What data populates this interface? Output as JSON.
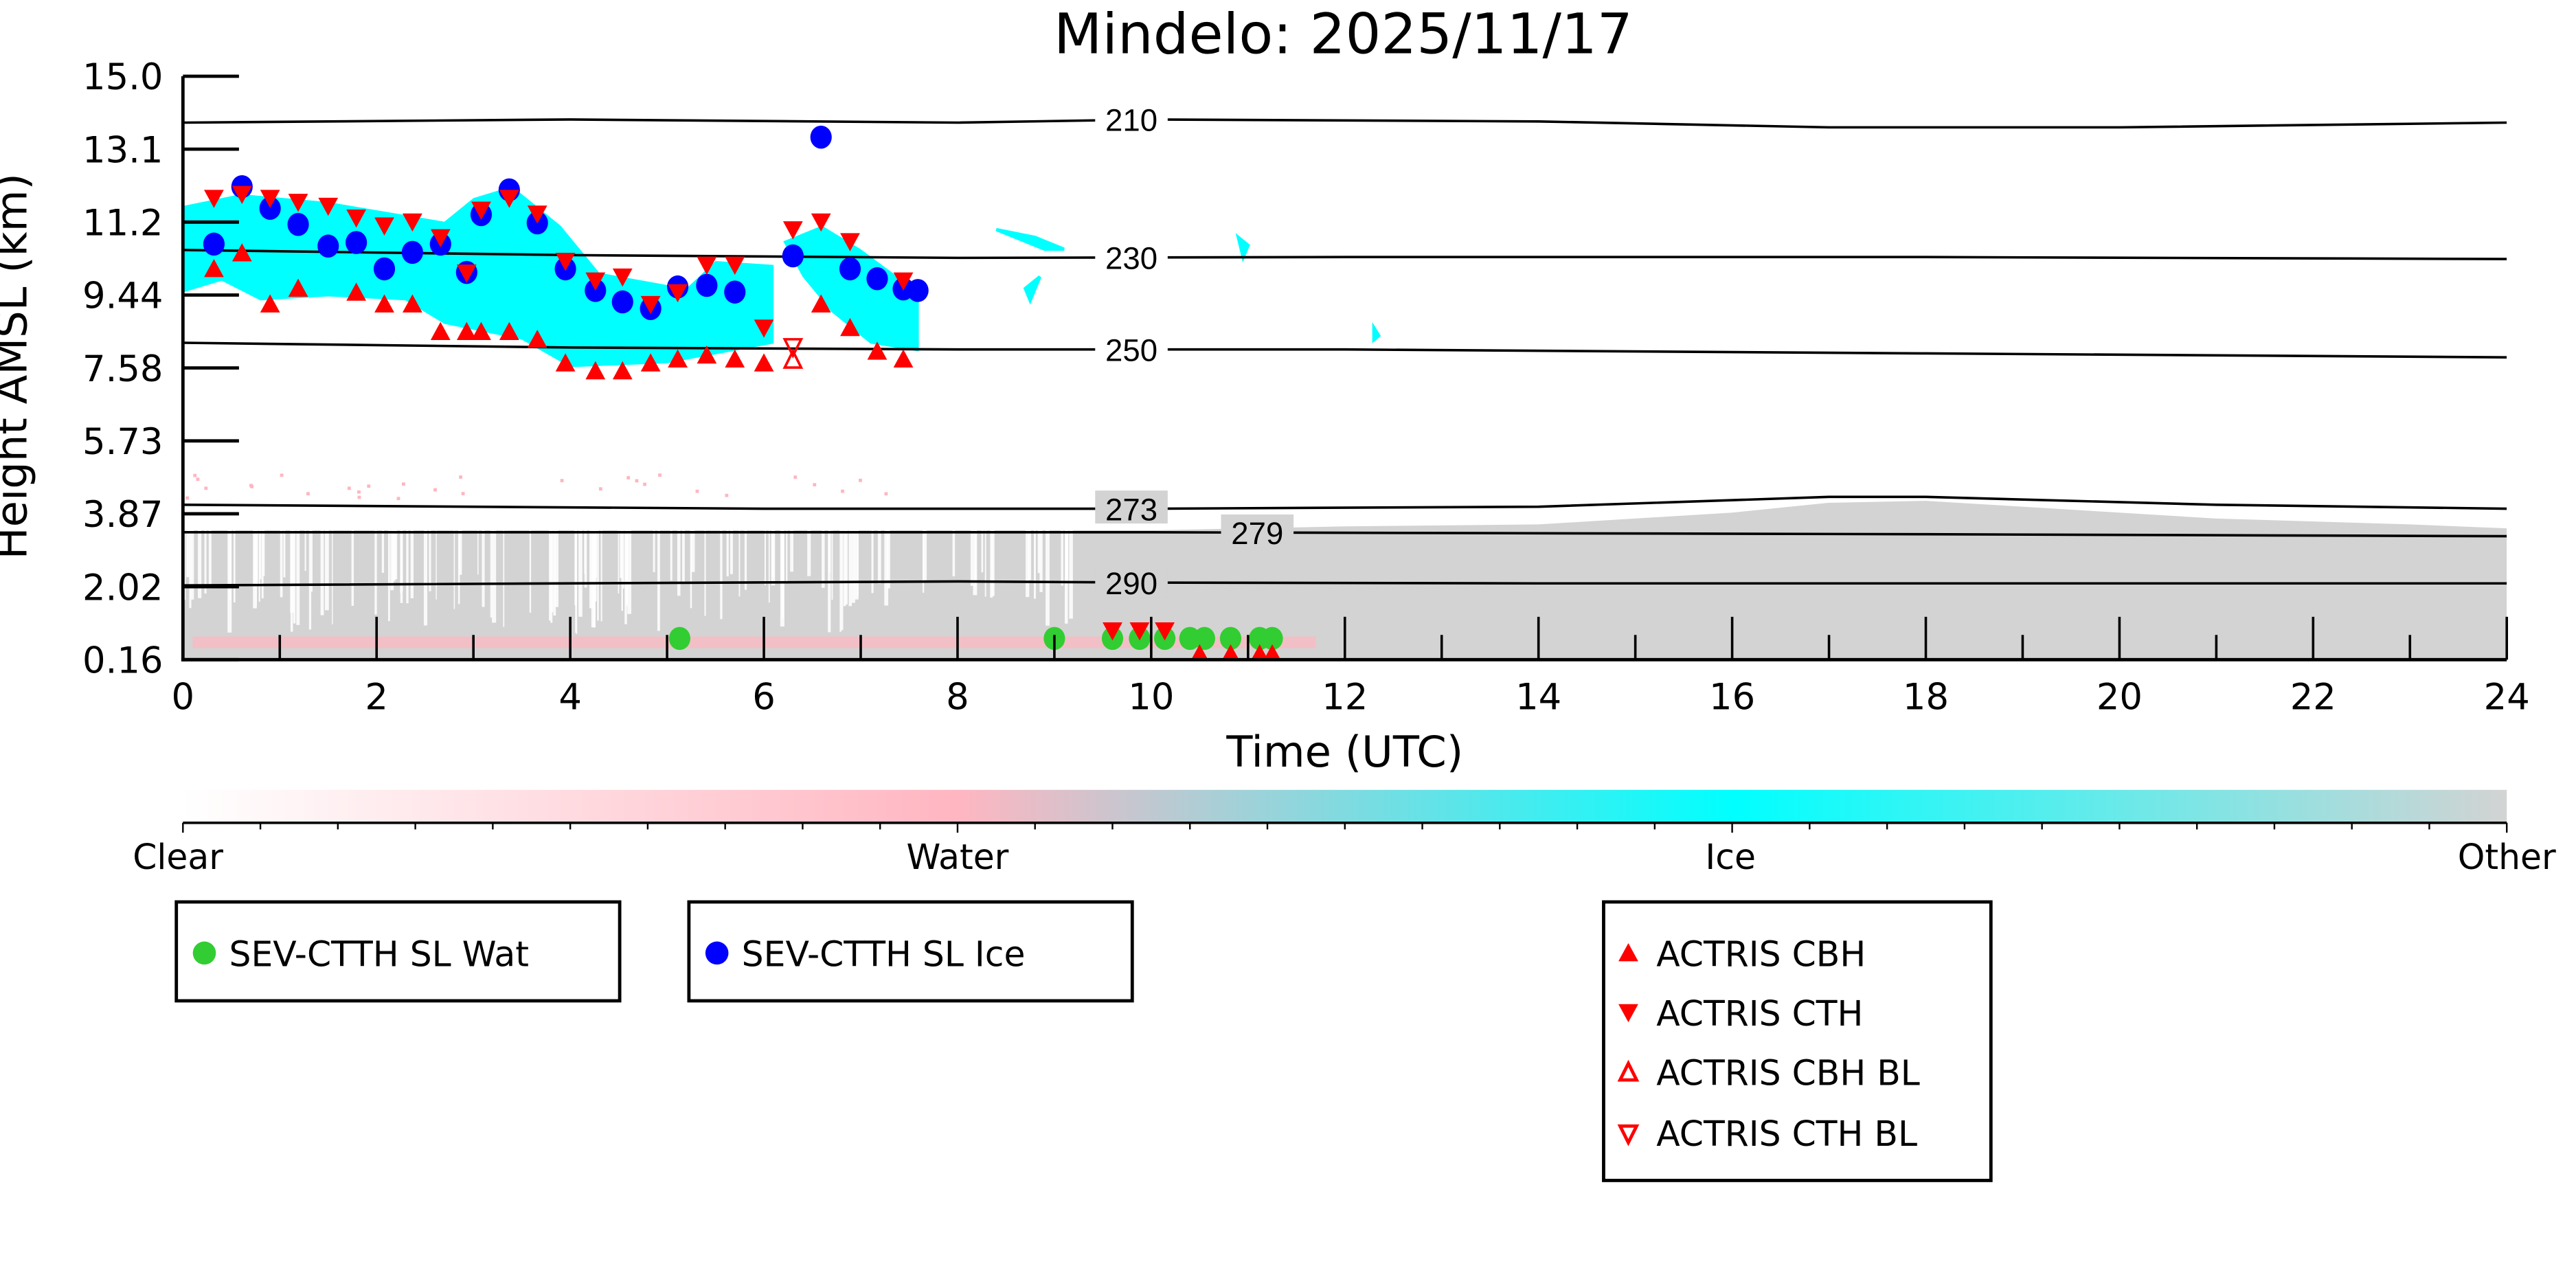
{
  "chart_data": {
    "type": "scatter",
    "title": "Mindelo: 2025/11/17",
    "xlabel": "Time (UTC)",
    "ylabel": "Height AMSL (km)",
    "xlim": [
      0,
      24
    ],
    "ylim": [
      0.16,
      15.0
    ],
    "xticks": [
      "0",
      "2",
      "4",
      "6",
      "8",
      "10",
      "12",
      "14",
      "16",
      "18",
      "20",
      "22",
      "24"
    ],
    "yticks": [
      "15.0",
      "13.1",
      "11.2",
      "9.44",
      "7.58",
      "5.73",
      "3.87",
      "2.02",
      "0.16"
    ],
    "colorbar": {
      "labels": [
        "Clear",
        "Water",
        "Ice",
        "Other"
      ],
      "colors": [
        "#ffffff",
        "#ffb6c1",
        "#00ffff",
        "#d3d3d3"
      ]
    },
    "series": [
      {
        "name": "SEV-CTTH SL Wat",
        "marker": "circle",
        "color": "#32cd32",
        "points": [
          [
            5.13,
            0.7
          ],
          [
            9.0,
            0.7
          ],
          [
            9.6,
            0.7
          ],
          [
            9.88,
            0.7
          ],
          [
            10.14,
            0.7
          ],
          [
            10.4,
            0.7
          ],
          [
            10.55,
            0.7
          ],
          [
            10.82,
            0.7
          ],
          [
            11.12,
            0.7
          ],
          [
            11.25,
            0.7
          ]
        ]
      },
      {
        "name": "SEV-CTTH SL Ice",
        "marker": "circle",
        "color": "#0000ff",
        "points": [
          [
            0.32,
            10.73
          ],
          [
            0.61,
            12.19
          ],
          [
            0.9,
            11.64
          ],
          [
            1.19,
            11.23
          ],
          [
            1.5,
            10.68
          ],
          [
            1.79,
            10.77
          ],
          [
            2.08,
            10.1
          ],
          [
            2.37,
            10.52
          ],
          [
            2.66,
            10.73
          ],
          [
            2.93,
            10.01
          ],
          [
            3.08,
            11.48
          ],
          [
            3.37,
            12.11
          ],
          [
            3.66,
            11.27
          ],
          [
            3.95,
            10.1
          ],
          [
            4.26,
            9.55
          ],
          [
            4.54,
            9.26
          ],
          [
            4.83,
            9.09
          ],
          [
            5.11,
            9.64
          ],
          [
            5.41,
            9.68
          ],
          [
            5.7,
            9.51
          ],
          [
            6.3,
            10.43
          ],
          [
            6.59,
            13.45
          ],
          [
            6.89,
            10.1
          ],
          [
            7.17,
            9.85
          ],
          [
            7.44,
            9.59
          ],
          [
            7.59,
            9.55
          ]
        ]
      },
      {
        "name": "ACTRIS CBH",
        "marker": "triangle-up",
        "color": "#ff0000",
        "points": [
          [
            0.32,
            10.1
          ],
          [
            0.61,
            10.5
          ],
          [
            0.9,
            9.2
          ],
          [
            1.19,
            9.6
          ],
          [
            1.79,
            9.5
          ],
          [
            2.08,
            9.2
          ],
          [
            2.37,
            9.2
          ],
          [
            2.66,
            8.5
          ],
          [
            2.93,
            8.5
          ],
          [
            3.08,
            8.5
          ],
          [
            3.37,
            8.5
          ],
          [
            3.66,
            8.3
          ],
          [
            3.95,
            7.7
          ],
          [
            4.26,
            7.5
          ],
          [
            4.54,
            7.5
          ],
          [
            4.83,
            7.7
          ],
          [
            5.11,
            7.8
          ],
          [
            5.41,
            7.9
          ],
          [
            5.7,
            7.8
          ],
          [
            6.0,
            7.7
          ],
          [
            6.59,
            9.2
          ],
          [
            6.89,
            8.6
          ],
          [
            7.17,
            8.0
          ],
          [
            7.44,
            7.8
          ],
          [
            10.5,
            0.3
          ],
          [
            10.82,
            0.3
          ],
          [
            11.12,
            0.3
          ],
          [
            11.25,
            0.3
          ]
        ]
      },
      {
        "name": "ACTRIS CTH",
        "marker": "triangle-down",
        "color": "#ff0000",
        "points": [
          [
            0.32,
            11.9
          ],
          [
            0.61,
            12.0
          ],
          [
            0.9,
            11.9
          ],
          [
            1.19,
            11.8
          ],
          [
            1.5,
            11.7
          ],
          [
            1.79,
            11.4
          ],
          [
            2.08,
            11.2
          ],
          [
            2.37,
            11.3
          ],
          [
            2.66,
            10.9
          ],
          [
            2.93,
            10.0
          ],
          [
            3.08,
            11.6
          ],
          [
            3.37,
            11.9
          ],
          [
            3.66,
            11.5
          ],
          [
            3.95,
            10.3
          ],
          [
            4.26,
            9.8
          ],
          [
            4.54,
            9.9
          ],
          [
            4.83,
            9.2
          ],
          [
            5.11,
            9.5
          ],
          [
            5.41,
            10.2
          ],
          [
            5.7,
            10.2
          ],
          [
            6.0,
            8.6
          ],
          [
            6.3,
            11.1
          ],
          [
            6.59,
            11.3
          ],
          [
            6.89,
            10.8
          ],
          [
            7.44,
            9.8
          ],
          [
            9.6,
            0.9
          ],
          [
            9.88,
            0.9
          ],
          [
            10.14,
            0.9
          ]
        ]
      },
      {
        "name": "ACTRIS CBH BL",
        "marker": "triangle-up-open",
        "color": "#ff0000",
        "points": [
          [
            6.3,
            7.8
          ]
        ]
      },
      {
        "name": "ACTRIS CTH BL",
        "marker": "triangle-down-open",
        "color": "#ff0000",
        "points": [
          [
            6.3,
            8.1
          ]
        ]
      }
    ],
    "isotherms": [
      {
        "label": "210",
        "points": [
          [
            0,
            13.82
          ],
          [
            4,
            13.9
          ],
          [
            8,
            13.82
          ],
          [
            10,
            13.9
          ],
          [
            14,
            13.85
          ],
          [
            17,
            13.7
          ],
          [
            20,
            13.7
          ],
          [
            24,
            13.82
          ]
        ]
      },
      {
        "label": "230",
        "points": [
          [
            0,
            10.58
          ],
          [
            4,
            10.45
          ],
          [
            8,
            10.38
          ],
          [
            12,
            10.4
          ],
          [
            18,
            10.4
          ],
          [
            24,
            10.35
          ]
        ]
      },
      {
        "label": "250",
        "points": [
          [
            0,
            8.22
          ],
          [
            4,
            8.1
          ],
          [
            8,
            8.05
          ],
          [
            12,
            8.05
          ],
          [
            18,
            7.95
          ],
          [
            24,
            7.85
          ]
        ]
      },
      {
        "label": "273",
        "points": [
          [
            0,
            4.1
          ],
          [
            6,
            4.0
          ],
          [
            10,
            4.0
          ],
          [
            14,
            4.05
          ],
          [
            17,
            4.3
          ],
          [
            18,
            4.3
          ],
          [
            21,
            4.1
          ],
          [
            24,
            4.0
          ]
        ]
      },
      {
        "label": "279",
        "points": [
          [
            0,
            3.4
          ],
          [
            10,
            3.4
          ],
          [
            18,
            3.35
          ],
          [
            24,
            3.3
          ]
        ]
      },
      {
        "label": "290",
        "points": [
          [
            0,
            2.05
          ],
          [
            8,
            2.15
          ],
          [
            10,
            2.12
          ],
          [
            14,
            2.1
          ],
          [
            24,
            2.1
          ]
        ]
      }
    ]
  }
}
